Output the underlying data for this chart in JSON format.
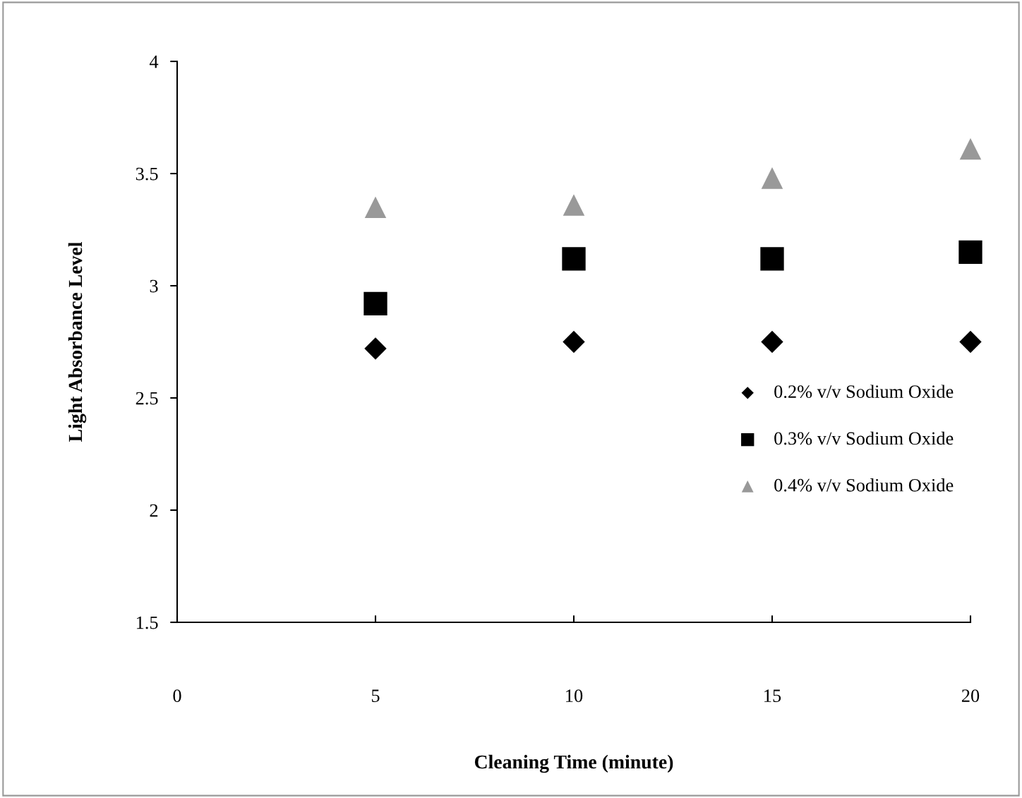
{
  "chart_data": {
    "type": "scatter",
    "xlabel": "Cleaning Time (minute)",
    "ylabel": "Light Absorbance Level",
    "x": [
      5,
      10,
      15,
      20
    ],
    "series": [
      {
        "name": "0.2% v/v Sodium Oxide",
        "color": "#000000",
        "marker": "diamond",
        "values": [
          2.72,
          2.75,
          2.75,
          2.75
        ]
      },
      {
        "name": "0.3% v/v Sodium Oxide",
        "color": "#000000",
        "marker": "square",
        "values": [
          2.92,
          3.12,
          3.12,
          3.15
        ]
      },
      {
        "name": "0.4% v/v Sodium Oxide",
        "color": "#999999",
        "marker": "triangle",
        "values": [
          3.35,
          3.36,
          3.48,
          3.61
        ]
      }
    ],
    "xlim": [
      0,
      20
    ],
    "xticks": [
      0,
      5,
      10,
      15,
      20
    ],
    "ylim": [
      1.5,
      4
    ],
    "yticks": [
      1.5,
      2,
      2.5,
      3,
      3.5,
      4
    ],
    "grid": false,
    "legend": "right"
  }
}
